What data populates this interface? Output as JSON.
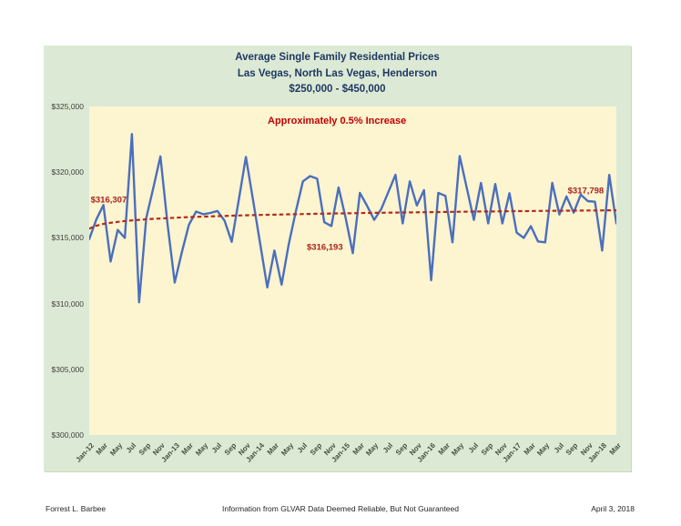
{
  "footer": {
    "left": "Forrest L. Barbee",
    "center": "Information  from GLVAR Data Deemed Reliable, But Not Guaranteed",
    "right": "April 3, 2018"
  },
  "chart_data": {
    "type": "line",
    "title_lines": [
      "Average Single Family Residential Prices",
      "Las Vegas, North Las Vegas, Henderson",
      "$250,000 - $450,000"
    ],
    "legend": "none",
    "grid": "off",
    "ylim": [
      300000,
      325000
    ],
    "y_tick_labels": [
      "$325,000",
      "$320,000",
      "$315,000",
      "$310,000",
      "$305,000",
      "$300,000"
    ],
    "x_tick_labels": [
      "Jan-12",
      "Mar",
      "May",
      "Jul",
      "Sep",
      "Nov",
      "Jan-13",
      "Mar",
      "May",
      "Jul",
      "Sep",
      "Nov",
      "Jan-14",
      "Mar",
      "May",
      "Jul",
      "Sep",
      "Nov",
      "Jan-15",
      "Mar",
      "May",
      "Jul",
      "Sep",
      "Nov",
      "Jan-16",
      "Mar",
      "May",
      "Jul",
      "Sep",
      "Nov",
      "Jan-17",
      "Mar",
      "May",
      "Jul",
      "Sep",
      "Nov",
      "Jan-18",
      "Mar"
    ],
    "frequency": "monthly",
    "x": [
      "Jan-12",
      "Feb-12",
      "Mar-12",
      "Apr-12",
      "May-12",
      "Jun-12",
      "Jul-12",
      "Aug-12",
      "Sep-12",
      "Oct-12",
      "Nov-12",
      "Dec-12",
      "Jan-13",
      "Feb-13",
      "Mar-13",
      "Apr-13",
      "May-13",
      "Jun-13",
      "Jul-13",
      "Aug-13",
      "Sep-13",
      "Oct-13",
      "Nov-13",
      "Dec-13",
      "Jan-14",
      "Feb-14",
      "Mar-14",
      "Apr-14",
      "May-14",
      "Jun-14",
      "Jul-14",
      "Aug-14",
      "Sep-14",
      "Oct-14",
      "Nov-14",
      "Dec-14",
      "Jan-15",
      "Feb-15",
      "Mar-15",
      "Apr-15",
      "May-15",
      "Jun-15",
      "Jul-15",
      "Aug-15",
      "Sep-15",
      "Oct-15",
      "Nov-15",
      "Dec-15",
      "Jan-16",
      "Feb-16",
      "Mar-16",
      "Apr-16",
      "May-16",
      "Jun-16",
      "Jul-16",
      "Aug-16",
      "Sep-16",
      "Oct-16",
      "Nov-16",
      "Dec-16",
      "Jan-17",
      "Feb-17",
      "Mar-17",
      "Apr-17",
      "May-17",
      "Jun-17",
      "Jul-17",
      "Aug-17",
      "Sep-17",
      "Oct-17",
      "Nov-17",
      "Dec-17",
      "Jan-18",
      "Feb-18",
      "Mar-18"
    ],
    "values": [
      314900,
      316400,
      317500,
      313200,
      315600,
      315000,
      322900,
      310100,
      316500,
      318800,
      321200,
      316000,
      311600,
      313900,
      316000,
      317000,
      316800,
      316900,
      317050,
      316300,
      314700,
      317900,
      321160,
      317850,
      314540,
      311230,
      314040,
      311440,
      314500,
      317000,
      319300,
      319700,
      319500,
      316193,
      315900,
      318840,
      316500,
      313840,
      318420,
      317450,
      316370,
      317200,
      318500,
      319800,
      316100,
      319300,
      317465,
      318630,
      311780,
      318420,
      318200,
      314660,
      321230,
      318800,
      316370,
      319180,
      316100,
      319100,
      316100,
      318400,
      315400,
      315000,
      315890,
      314730,
      314660,
      319180,
      316780,
      318150,
      316920,
      318290,
      317800,
      317750,
      314040,
      319790,
      316100
    ],
    "trend": {
      "shape": "logarithmic",
      "line_style": "dashed",
      "start_value": 315700,
      "end_value": 317100
    },
    "annotations": {
      "headline": {
        "text": "Approximately 0.5% Increase",
        "x_pct": 47.0,
        "y_pct": 4.4
      },
      "point_labels": [
        {
          "text": "$316,307",
          "x_pct": 3.7,
          "y_pct": 28.4
        },
        {
          "text": "$316,193",
          "x_pct": 44.7,
          "y_pct": 42.9
        },
        {
          "text": "$317,798",
          "x_pct": 94.2,
          "y_pct": 25.8
        }
      ]
    },
    "colors": {
      "panel_bg": "#dcead5",
      "plot_bg": "#fdf4d0",
      "series": "#4a6fbe",
      "trend": "#b12b1d",
      "headline": "#c00000",
      "point_label": "#a8221a",
      "title": "#1f3864",
      "axis_text": "#3f3f3f"
    }
  }
}
